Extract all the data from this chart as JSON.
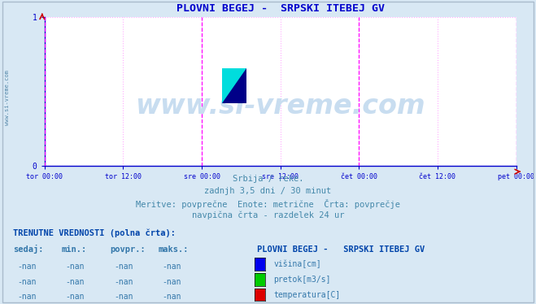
{
  "title": "PLOVNI BEGEJ -  SRPSKI ITEBEJ GV",
  "title_color": "#0000cc",
  "bg_color": "#d8e8f4",
  "plot_bg_color": "#ffffff",
  "grid_color": "#ffaaff",
  "grid_style": ":",
  "axis_color": "#0000cc",
  "tick_color": "#0000cc",
  "ylim": [
    0,
    1
  ],
  "yticks": [
    0,
    1
  ],
  "xtick_labels": [
    "tor 00:00",
    "tor 12:00",
    "sre 00:00",
    "sre 12:00",
    "čet 00:00",
    "čet 12:00",
    "pet 00:00"
  ],
  "xtick_positions": [
    0,
    0.5,
    1.0,
    1.5,
    2.0,
    2.5,
    3.0
  ],
  "vline_positions": [
    0.0,
    1.0,
    2.0,
    3.0
  ],
  "vline_color": "#ff00ff",
  "vline_style": "--",
  "arrow_color": "#cc0000",
  "watermark": "www.si-vreme.com",
  "watermark_color": "#c8ddf0",
  "watermark_fontsize": 24,
  "sidebar_text": "www.si-vreme.com",
  "sidebar_color": "#5588aa",
  "sub_text1": "Srbija / reke.",
  "sub_text2": "zadnjh 3,5 dni / 30 minut",
  "sub_text3": "Meritve: povprečne  Enote: metrične  Črta: povprečje",
  "sub_text4": "navpična črta - razdelek 24 ur",
  "sub_text_color": "#4488aa",
  "sub_text_fontsize": 7.5,
  "table_title": "TRENUTNE VREDNOSTI (polna črta):",
  "table_title_color": "#0044aa",
  "table_title_fontsize": 7.5,
  "col_headers": [
    "sedaj:",
    "min.:",
    "povpr.:",
    "maks.:"
  ],
  "col_header_color": "#3377aa",
  "col_header_fontsize": 7.5,
  "nan_val": "-nan",
  "data_color": "#3377aa",
  "legend_title": "PLOVNI BEGEJ -   SRPSKI ITEBEJ GV",
  "legend_title_color": "#0044aa",
  "legend_items": [
    "višina[cm]",
    "pretok[m3/s]",
    "temperatura[C]"
  ],
  "legend_colors": [
    "#0000ee",
    "#00cc00",
    "#dd0000"
  ],
  "legend_text_color": "#3377aa",
  "logo_yellow": "#ffff00",
  "logo_cyan": "#00dddd",
  "logo_blue": "#000088"
}
